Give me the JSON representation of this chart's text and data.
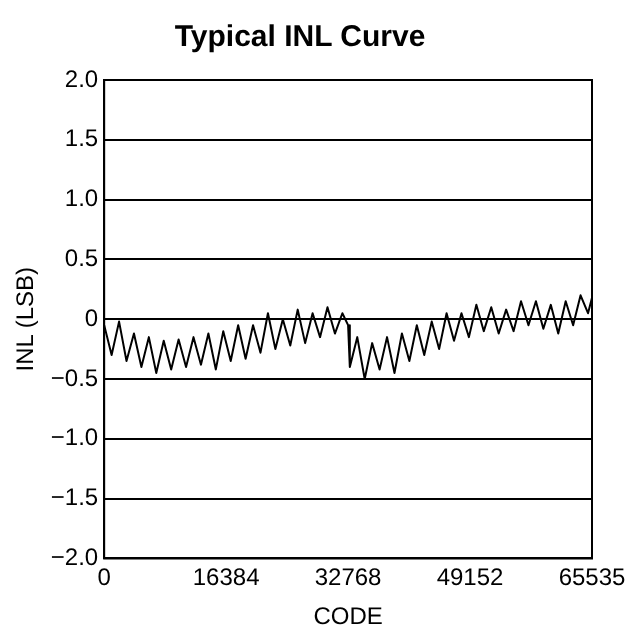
{
  "chart_data": {
    "type": "line",
    "title": "Typical INL Curve",
    "xlabel": "CODE",
    "ylabel": "INL (LSB)",
    "x": [
      0,
      1000,
      2000,
      3000,
      4000,
      5000,
      6000,
      7000,
      8000,
      9000,
      10000,
      11000,
      12000,
      13000,
      14000,
      15000,
      16000,
      17000,
      18000,
      19000,
      20000,
      21000,
      22000,
      23000,
      24000,
      25000,
      26000,
      27000,
      28000,
      29000,
      30000,
      31000,
      32000,
      32768,
      33000,
      34000,
      35000,
      36000,
      37000,
      38000,
      39000,
      40000,
      41000,
      42000,
      43000,
      44000,
      45000,
      46000,
      47000,
      48000,
      49000,
      50000,
      51000,
      52000,
      53000,
      54000,
      55000,
      56000,
      57000,
      58000,
      59000,
      60000,
      61000,
      62000,
      63000,
      64000,
      65000,
      65535
    ],
    "series": [
      {
        "color": "#000000",
        "values": [
          -0.05,
          -0.3,
          -0.02,
          -0.35,
          -0.12,
          -0.4,
          -0.15,
          -0.45,
          -0.18,
          -0.42,
          -0.17,
          -0.4,
          -0.15,
          -0.38,
          -0.12,
          -0.42,
          -0.1,
          -0.35,
          -0.05,
          -0.33,
          -0.05,
          -0.28,
          0.05,
          -0.25,
          0,
          -0.22,
          0.08,
          -0.2,
          0.05,
          -0.15,
          0.1,
          -0.12,
          0.05,
          -0.05,
          -0.4,
          -0.15,
          -0.5,
          -0.2,
          -0.42,
          -0.15,
          -0.45,
          -0.12,
          -0.35,
          -0.05,
          -0.3,
          -0.02,
          -0.25,
          0.05,
          -0.18,
          0.05,
          -0.15,
          0.12,
          -0.1,
          0.1,
          -0.12,
          0.08,
          -0.1,
          0.15,
          -0.05,
          0.15,
          -0.08,
          0.12,
          -0.12,
          0.15,
          -0.05,
          0.2,
          0.05,
          0.18
        ]
      }
    ],
    "xlim": [
      0,
      65535
    ],
    "xticks": [
      0,
      16384,
      32768,
      49152,
      65535
    ],
    "ylim": [
      -2,
      2
    ],
    "yticks": [
      {
        "value": -2,
        "label": "−2.0"
      },
      {
        "value": -1.5,
        "label": "−1.5"
      },
      {
        "value": -1,
        "label": "−1.0"
      },
      {
        "value": -0.5,
        "label": "−0.5"
      },
      0,
      {
        "value": 0.5,
        "label": "0.5"
      },
      {
        "value": 1,
        "label": "1.0"
      },
      {
        "value": 1.5,
        "label": "1.5"
      },
      {
        "value": 2,
        "label": "2.0"
      }
    ],
    "grid": "y",
    "legend": false,
    "marker": "none",
    "line_style": "solid"
  }
}
